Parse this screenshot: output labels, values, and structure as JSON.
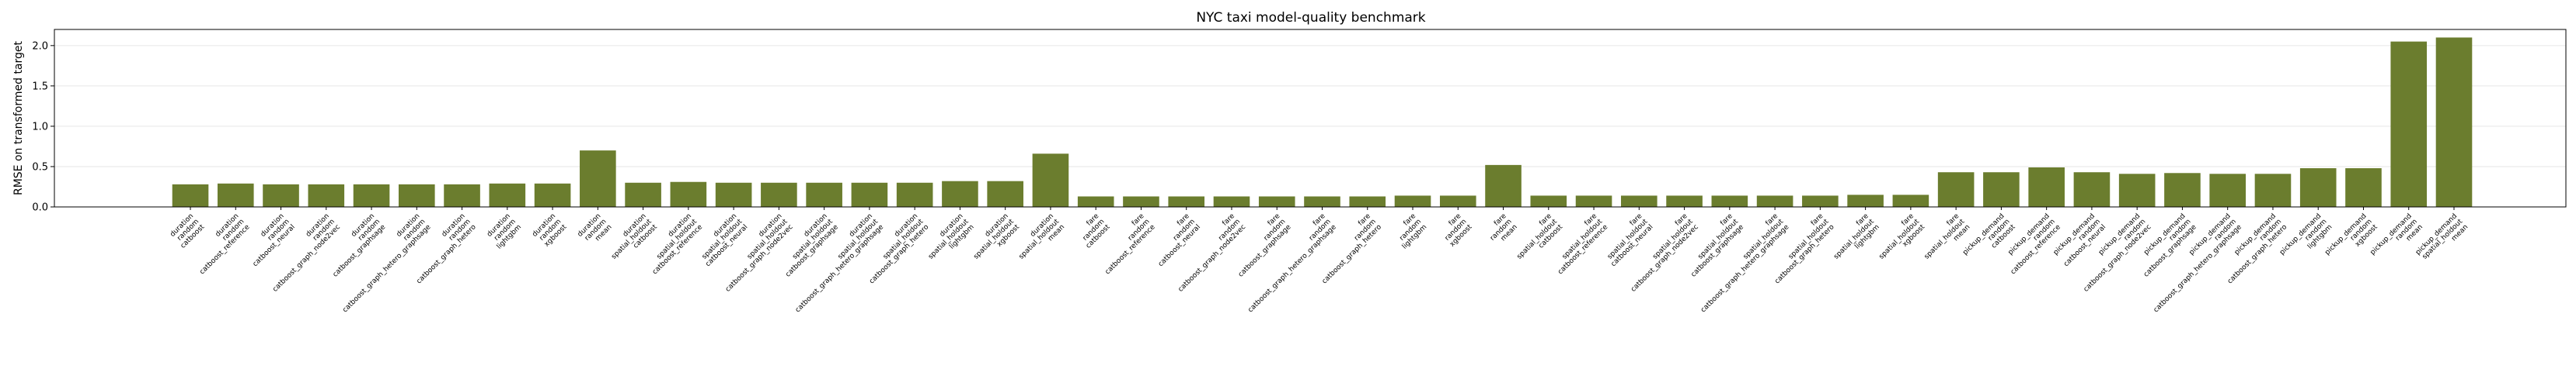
{
  "chart_data": {
    "type": "bar",
    "title": "NYC taxi model-quality benchmark",
    "xlabel": "",
    "ylabel": "RMSE on transformed target",
    "ylim": [
      0,
      2.2
    ],
    "yticks": [
      0.0,
      0.5,
      1.0,
      1.5,
      2.0
    ],
    "ytick_labels": [
      "0.0",
      "0.5",
      "1.0",
      "1.5",
      "2.0"
    ],
    "grid": "horizontal",
    "bar_color": "#6b7d2e",
    "categories": [
      "duration\nrandom\ncatboost",
      "duration\nrandom\ncatboost_reference",
      "duration\nrandom\ncatboost_neural",
      "duration\nrandom\ncatboost_graph_node2vec",
      "duration\nrandom\ncatboost_graphsage",
      "duration\nrandom\ncatboost_graph_hetero_graphsage",
      "duration\nrandom\ncatboost_graph_hetero",
      "duration\nrandom\nlightgbm",
      "duration\nrandom\nxgboost",
      "duration\nrandom\nmean",
      "duration\nspatial_holdout\ncatboost",
      "duration\nspatial_holdout\ncatboost_reference",
      "duration\nspatial_holdout\ncatboost_neural",
      "duration\nspatial_holdout\ncatboost_graph_node2vec",
      "duration\nspatial_holdout\ncatboost_graphsage",
      "duration\nspatial_holdout\ncatboost_graph_hetero_graphsage",
      "duration\nspatial_holdout\ncatboost_graph_hetero",
      "duration\nspatial_holdout\nlightgbm",
      "duration\nspatial_holdout\nxgboost",
      "duration\nspatial_holdout\nmean",
      "fare\nrandom\ncatboost",
      "fare\nrandom\ncatboost_reference",
      "fare\nrandom\ncatboost_neural",
      "fare\nrandom\ncatboost_graph_node2vec",
      "fare\nrandom\ncatboost_graphsage",
      "fare\nrandom\ncatboost_graph_hetero_graphsage",
      "fare\nrandom\ncatboost_graph_hetero",
      "fare\nrandom\nlightgbm",
      "fare\nrandom\nxgboost",
      "fare\nrandom\nmean",
      "fare\nspatial_holdout\ncatboost",
      "fare\nspatial_holdout\ncatboost_reference",
      "fare\nspatial_holdout\ncatboost_neural",
      "fare\nspatial_holdout\ncatboost_graph_node2vec",
      "fare\nspatial_holdout\ncatboost_graphsage",
      "fare\nspatial_holdout\ncatboost_graph_hetero_graphsage",
      "fare\nspatial_holdout\ncatboost_graph_hetero",
      "fare\nspatial_holdout\nlightgbm",
      "fare\nspatial_holdout\nxgboost",
      "fare\nspatial_holdout\nmean",
      "pickup_demand\nrandom\ncatboost",
      "pickup_demand\nrandom\ncatboost_reference",
      "pickup_demand\nrandom\ncatboost_neural",
      "pickup_demand\nrandom\ncatboost_graph_node2vec",
      "pickup_demand\nrandom\ncatboost_graphsage",
      "pickup_demand\nrandom\ncatboost_graph_hetero_graphsage",
      "pickup_demand\nrandom\ncatboost_graph_hetero",
      "pickup_demand\nrandom\nlightgbm",
      "pickup_demand\nrandom\nxgboost",
      "pickup_demand\nrandom\nmean",
      "pickup_demand\nspatial_holdout\nmean"
    ],
    "values": [
      0.28,
      0.29,
      0.28,
      0.28,
      0.28,
      0.28,
      0.28,
      0.29,
      0.29,
      0.7,
      0.3,
      0.31,
      0.3,
      0.3,
      0.3,
      0.3,
      0.3,
      0.32,
      0.32,
      0.66,
      0.13,
      0.13,
      0.13,
      0.13,
      0.13,
      0.13,
      0.13,
      0.14,
      0.14,
      0.52,
      0.14,
      0.14,
      0.14,
      0.14,
      0.14,
      0.14,
      0.14,
      0.15,
      0.15,
      0.43,
      0.43,
      0.49,
      0.43,
      0.41,
      0.42,
      0.41,
      0.41,
      0.48,
      0.48,
      2.05,
      2.1
    ]
  }
}
